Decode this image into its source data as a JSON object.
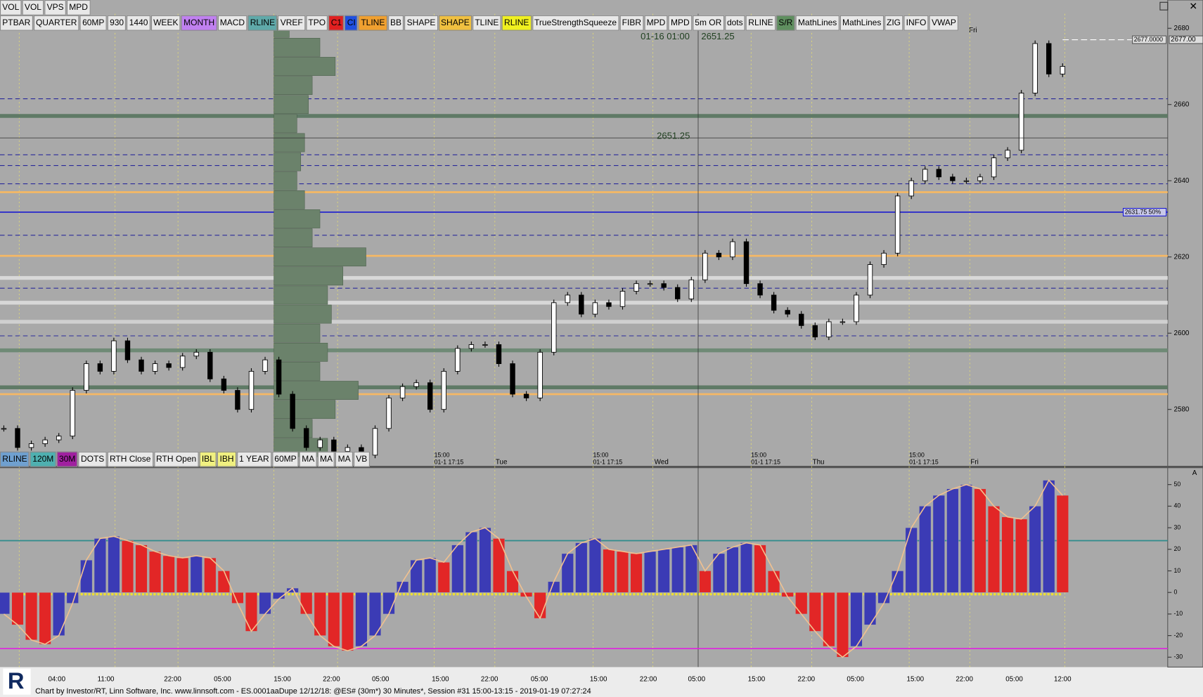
{
  "tabs": [
    "VOL",
    "VOL",
    "VPS",
    "MPD"
  ],
  "toolbar": [
    {
      "label": "PTBAR"
    },
    {
      "label": "QUARTER"
    },
    {
      "label": "60MP"
    },
    {
      "label": "930"
    },
    {
      "label": "1440"
    },
    {
      "label": "WEEK"
    },
    {
      "label": "MONTH",
      "color": "#c080f0"
    },
    {
      "label": "MACD"
    },
    {
      "label": "RLINE",
      "color": "#5fa9a9"
    },
    {
      "label": "VREF"
    },
    {
      "label": "TPO"
    },
    {
      "label": "C1",
      "color": "#e02020"
    },
    {
      "label": "CI",
      "color": "#2050e0"
    },
    {
      "label": "TLINE",
      "color": "#f0a030"
    },
    {
      "label": "BB"
    },
    {
      "label": "SHAPE"
    },
    {
      "label": "SHAPE",
      "color": "#f0c040"
    },
    {
      "label": "TLINE"
    },
    {
      "label": "RLINE",
      "color": "#f0f020"
    },
    {
      "label": "TrueStrengthSqueeze"
    },
    {
      "label": "FIBR"
    },
    {
      "label": "MPD"
    },
    {
      "label": "MPD"
    },
    {
      "label": "5m OR"
    },
    {
      "label": "dots"
    },
    {
      "label": "RLINE"
    },
    {
      "label": "S/R",
      "color": "#5f8f5f"
    },
    {
      "label": "MathLines"
    },
    {
      "label": "MathLines"
    },
    {
      "label": "ZIG"
    },
    {
      "label": "INFO"
    },
    {
      "label": "VWAP"
    }
  ],
  "bottom_toolbar": [
    {
      "label": "RLINE",
      "color": "#6fa0d0"
    },
    {
      "label": "120M",
      "color": "#4fb0b0"
    },
    {
      "label": "30M",
      "color": "#a020a0"
    },
    {
      "label": "DOTS"
    },
    {
      "label": "RTH Close"
    },
    {
      "label": "RTH Open"
    },
    {
      "label": "IBL",
      "color": "#f0f080"
    },
    {
      "label": "IBH",
      "color": "#f0f080"
    },
    {
      "label": "1 YEAR"
    },
    {
      "label": "60MP"
    },
    {
      "label": "MA"
    },
    {
      "label": "MA"
    },
    {
      "label": "MA"
    },
    {
      "label": "VB"
    }
  ],
  "price_chart": {
    "ylim": [
      2565.1,
      2683.8
    ],
    "yticks": [
      2580,
      2600,
      2620,
      2640,
      2660,
      2680
    ],
    "closes": [
      2575,
      2570,
      2571,
      2572,
      2573,
      2585,
      2592,
      2590,
      2598,
      2593,
      2590,
      2592,
      2591,
      2594,
      2595,
      2588,
      2585,
      2580,
      2590,
      2593,
      2584,
      2575,
      2570,
      2572,
      2569,
      2570,
      2568,
      2575,
      2583,
      2586,
      2587,
      2580,
      2590,
      2596,
      2597,
      2597,
      2592,
      2584,
      2583,
      2595,
      2608,
      2610,
      2605,
      2608,
      2607,
      2611,
      2613,
      2613,
      2612,
      2609,
      2614,
      2621,
      2620,
      2624,
      2613,
      2610,
      2606,
      2605,
      2602,
      2599,
      2603,
      2603,
      2610,
      2618,
      2621,
      2636,
      2640,
      2643,
      2641,
      2640,
      2640,
      2641,
      2646,
      2648,
      2663,
      2676,
      2668,
      2670
    ],
    "levels": [
      {
        "value": 2661.5,
        "style": "dashed",
        "color": "#2a2a9a"
      },
      {
        "value": 2646.8,
        "style": "dashed",
        "color": "#2a2a9a"
      },
      {
        "value": 2644,
        "style": "dashed",
        "color": "#2a2a9a"
      },
      {
        "value": 2639.2,
        "style": "dashed",
        "color": "#2a2a9a"
      },
      {
        "value": 2625.7,
        "style": "dashed",
        "color": "#2a2a9a"
      },
      {
        "value": 2611.8,
        "style": "dashed",
        "color": "#2a2a9a"
      },
      {
        "value": 2599.3,
        "style": "dashed",
        "color": "#2a2a9a"
      },
      {
        "value": 2637,
        "style": "solid",
        "color": "#f5b865"
      },
      {
        "value": 2620.3,
        "style": "solid",
        "color": "#f5b865"
      },
      {
        "value": 2584,
        "style": "solid",
        "color": "#f5b865"
      },
      {
        "value": 2657,
        "style": "band",
        "color": "#5f7a66"
      },
      {
        "value": 2585.8,
        "style": "band",
        "color": "#5f7a66"
      },
      {
        "value": 2595.5,
        "style": "band",
        "color": "#6f8a76"
      },
      {
        "value": 2614.5,
        "style": "light",
        "color": "#d8d8d8"
      },
      {
        "value": 2608,
        "style": "light",
        "color": "#d8d8d8"
      },
      {
        "value": 2603,
        "style": "light",
        "color": "#d0d0d0"
      }
    ],
    "level_label": {
      "value": 2631.75,
      "label": "2631.75 50%",
      "color": "#1a1ad0"
    },
    "last_price": [
      {
        "value": 2677,
        "label": "2677.0000"
      },
      {
        "value": 2677,
        "label": "2677.00"
      }
    ],
    "crosshair": {
      "time": "01-16 01:00",
      "value": 2651.25
    },
    "sessions": [
      {
        "time": "15:00",
        "date": "01-1 17:15",
        "day": "Tue"
      },
      {
        "time": "15:00",
        "date": "01-1 17:15",
        "day": "Wed"
      },
      {
        "time": "15:00",
        "date": "01-1 17:15",
        "day": "Thu"
      },
      {
        "time": "15:00",
        "date": "01-1 17:15",
        "day": "Fri"
      }
    ],
    "top_day": "Fri",
    "volume_profile": {
      "prices": [
        2570,
        2575,
        2580,
        2585,
        2590,
        2595,
        2600,
        2605,
        2610,
        2615,
        2620,
        2625,
        2630,
        2635,
        2640,
        2645,
        2650,
        2655,
        2660,
        2665,
        2670,
        2675,
        2680
      ],
      "values": [
        70,
        50,
        80,
        110,
        60,
        70,
        60,
        75,
        70,
        90,
        120,
        50,
        60,
        40,
        30,
        35,
        40,
        30,
        45,
        50,
        80,
        60,
        20
      ]
    }
  },
  "indicator": {
    "ylim": [
      -34.6,
      57.1
    ],
    "yticks": [
      50,
      40,
      30,
      20,
      10,
      0,
      -10,
      -20,
      -30
    ],
    "values": [
      -10,
      -15,
      -22,
      -24,
      -20,
      -5,
      15,
      25,
      26,
      24,
      22,
      19,
      17,
      16,
      17,
      16,
      10,
      -5,
      -18,
      -10,
      -3,
      2,
      -10,
      -20,
      -25,
      -27,
      -25,
      -20,
      -10,
      5,
      15,
      16,
      14,
      22,
      28,
      30,
      25,
      10,
      -2,
      -12,
      5,
      18,
      23,
      25,
      20,
      19,
      18,
      19,
      20,
      21,
      22,
      10,
      18,
      21,
      23,
      22,
      10,
      -2,
      -10,
      -18,
      -25,
      -30,
      -25,
      -15,
      -5,
      10,
      30,
      40,
      45,
      48,
      50,
      48,
      40,
      35,
      34,
      40,
      52,
      45
    ],
    "levels": [
      {
        "value": 24,
        "color": "#2e8b8b"
      },
      {
        "value": -26,
        "color": "#e020e0"
      }
    ],
    "corner_label": "A"
  },
  "time_axis": [
    "04:00",
    "11:00",
    "22:00",
    "05:00",
    "15:00",
    "22:00",
    "05:00",
    "15:00",
    "22:00",
    "05:00",
    "15:00",
    "22:00",
    "05:00",
    "15:00",
    "22:00",
    "05:00",
    "15:00",
    "22:00",
    "05:00",
    "12:00"
  ],
  "status": "Chart by Investor/RT, Linn Software, Inc. www.linnsoft.com - ES.0001aaDupe  12/12/18: @ES# (30m*) 30 Minutes*, Session #31 15:00-13:15 - 2019-01-19 07:27:24"
}
